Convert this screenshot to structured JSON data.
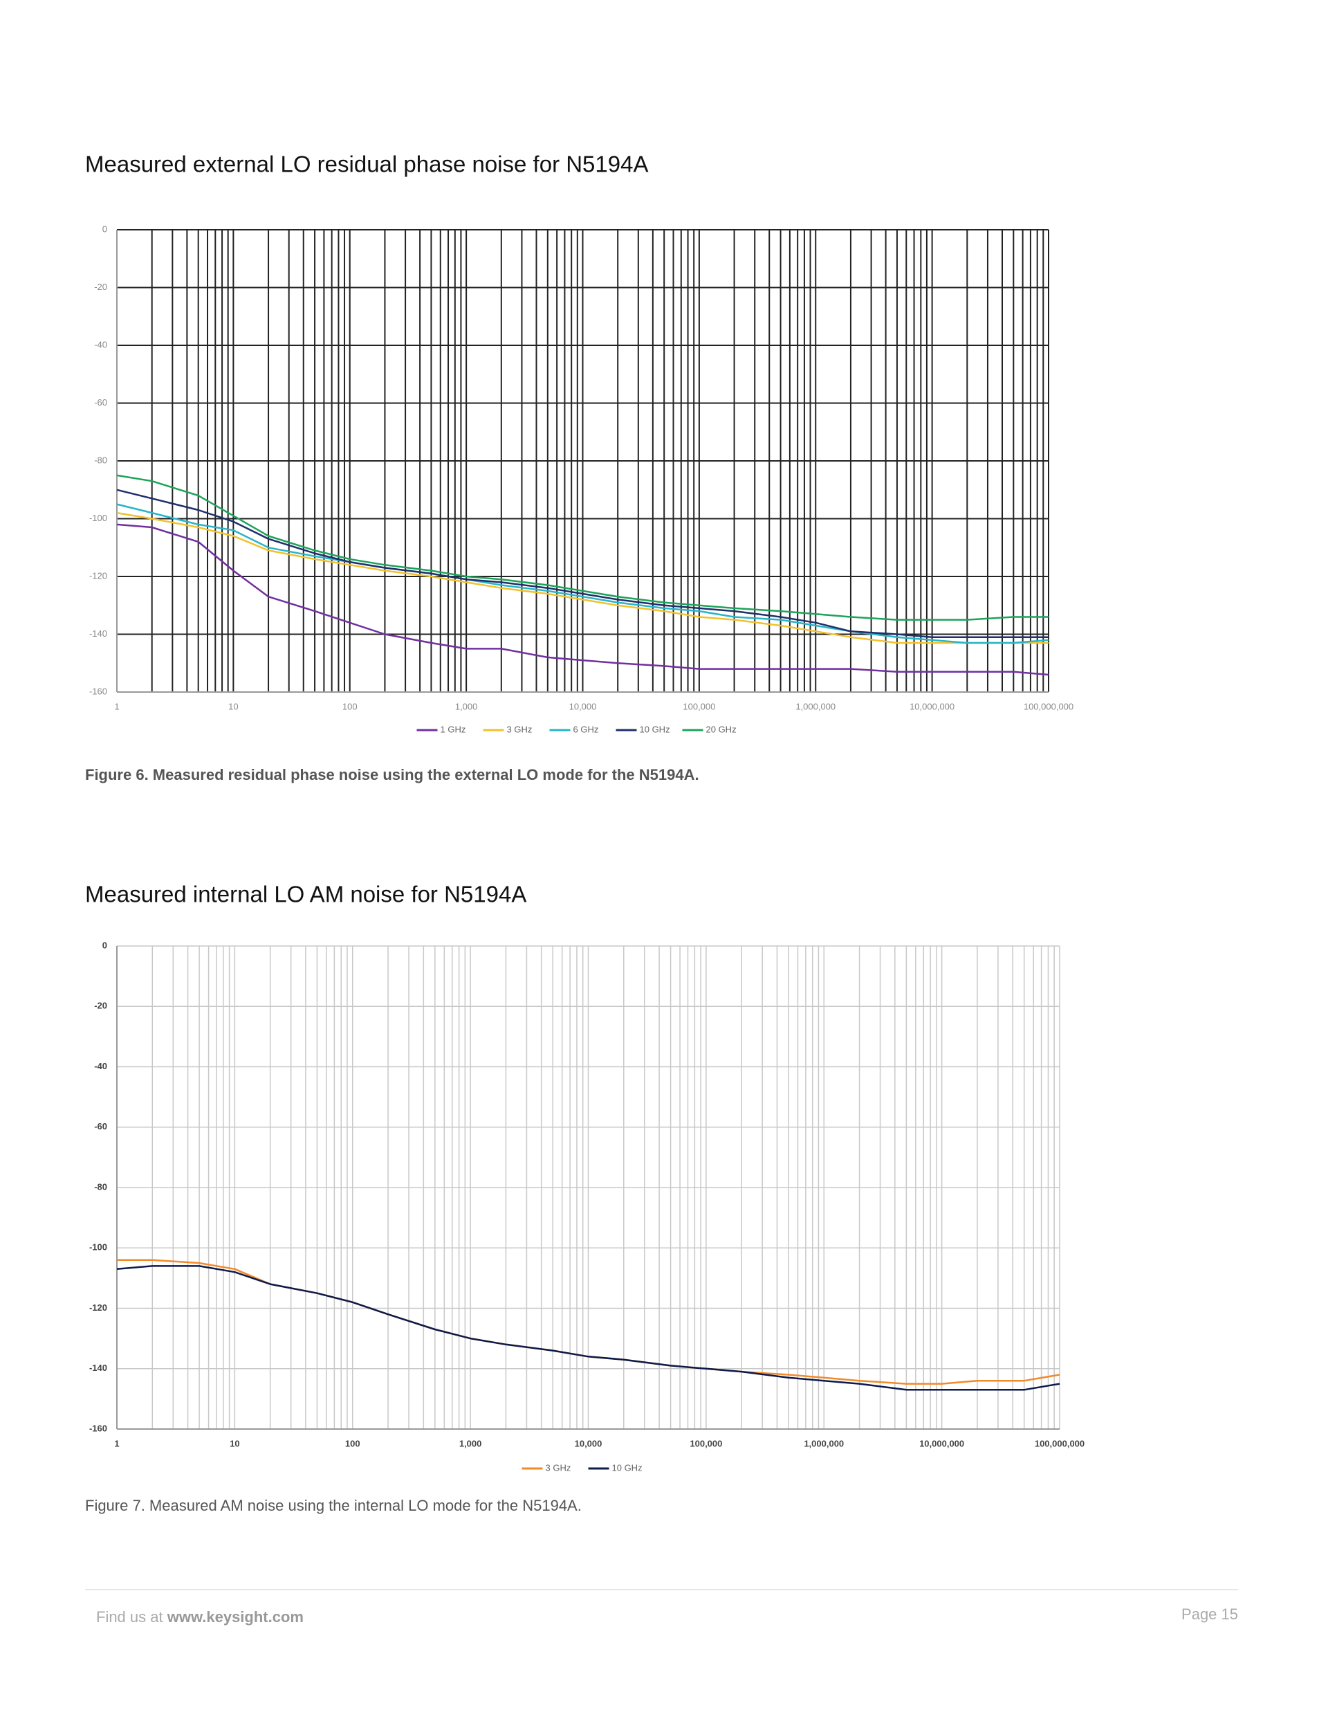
{
  "chart_data": [
    {
      "type": "line",
      "title": "Measured external LO residual phase noise for N5194A",
      "caption": "Figure 6. Measured residual phase noise using the external LO mode for the N5194A.",
      "xscale": "log",
      "grid": true,
      "minor_grid": true,
      "grid_color": "#222222",
      "legend": "bottom",
      "xlim": [
        1,
        100000000
      ],
      "ylim": [
        -160,
        0
      ],
      "xticks": [
        1,
        10,
        100,
        {
          "value": 1000,
          "label": "1,000"
        },
        {
          "value": 10000,
          "label": "10,000"
        },
        {
          "value": 100000,
          "label": "100,000"
        },
        {
          "value": 1000000,
          "label": "1,000,000"
        },
        {
          "value": 10000000,
          "label": "10,000,000"
        },
        {
          "value": 100000000,
          "label": "100,000,000"
        }
      ],
      "yticks": [
        0,
        -20,
        -40,
        -60,
        -80,
        -100,
        -120,
        -140,
        -160
      ],
      "x": [
        1,
        2,
        5,
        10,
        20,
        50,
        100,
        200,
        500,
        1000,
        2000,
        5000,
        10000,
        20000,
        50000,
        100000,
        200000,
        500000,
        1000000,
        2000000,
        5000000,
        10000000,
        20000000,
        50000000,
        100000000
      ],
      "series": [
        {
          "name": "1 GHz",
          "color": "#7030a0",
          "values": [
            -102,
            -103,
            -108,
            -118,
            -127,
            -132,
            -136,
            -140,
            -143,
            -145,
            -145,
            -148,
            -149,
            -150,
            -151,
            -152,
            -152,
            -152,
            -152,
            -152,
            -153,
            -153,
            -153,
            -153,
            -154
          ]
        },
        {
          "name": "3 GHz",
          "color": "#f2c12e",
          "values": [
            -98,
            -100,
            -103,
            -106,
            -111,
            -114,
            -116,
            -118,
            -120,
            -122,
            -124,
            -126,
            -128,
            -130,
            -132,
            -134,
            -135,
            -137,
            -139,
            -141,
            -143,
            -143,
            -143,
            -143,
            -143
          ]
        },
        {
          "name": "6 GHz",
          "color": "#27b5c8",
          "values": [
            -95,
            -98,
            -102,
            -104,
            -110,
            -113,
            -115,
            -117,
            -119,
            -121,
            -123,
            -125,
            -127,
            -129,
            -131,
            -132,
            -134,
            -135,
            -137,
            -139,
            -141,
            -142,
            -143,
            -143,
            -142
          ]
        },
        {
          "name": "10 GHz",
          "color": "#1f2f6b",
          "values": [
            -90,
            -93,
            -97,
            -101,
            -107,
            -112,
            -115,
            -117,
            -119,
            -121,
            -122,
            -124,
            -126,
            -128,
            -130,
            -131,
            -132,
            -134,
            -136,
            -139,
            -140,
            -141,
            -141,
            -141,
            -141
          ]
        },
        {
          "name": "20 GHz",
          "color": "#1ea35a",
          "values": [
            -85,
            -87,
            -92,
            -99,
            -106,
            -111,
            -114,
            -116,
            -118,
            -120,
            -121,
            -123,
            -125,
            -127,
            -129,
            -130,
            -131,
            -132,
            -133,
            -134,
            -135,
            -135,
            -135,
            -134,
            -134
          ]
        }
      ]
    },
    {
      "type": "line",
      "title": "Measured internal LO AM noise for N5194A",
      "caption": "Figure 7. Measured AM noise using the internal LO mode for the N5194A.",
      "xscale": "log",
      "grid": true,
      "minor_grid": true,
      "grid_color": "#c8c8c8",
      "legend": "bottom",
      "xlim": [
        1,
        100000000
      ],
      "ylim": [
        -160,
        0
      ],
      "xticks": [
        1,
        10,
        100,
        {
          "value": 1000,
          "label": "1,000"
        },
        {
          "value": 10000,
          "label": "10,000"
        },
        {
          "value": 100000,
          "label": "100,000"
        },
        {
          "value": 1000000,
          "label": "1,000,000"
        },
        {
          "value": 10000000,
          "label": "10,000,000"
        },
        {
          "value": 100000000,
          "label": "100,000,000"
        }
      ],
      "yticks": [
        0,
        -20,
        -40,
        -60,
        -80,
        -100,
        -120,
        -140,
        -160
      ],
      "x": [
        1,
        2,
        5,
        10,
        20,
        50,
        100,
        200,
        500,
        1000,
        2000,
        5000,
        10000,
        20000,
        50000,
        100000,
        200000,
        500000,
        1000000,
        2000000,
        5000000,
        10000000,
        20000000,
        50000000,
        100000000
      ],
      "series": [
        {
          "name": "3 GHz",
          "color": "#f28a2a",
          "values": [
            -104,
            -104,
            -105,
            -107,
            -112,
            -115,
            -118,
            -122,
            -127,
            -130,
            -132,
            -134,
            -136,
            -137,
            -139,
            -140,
            -141,
            -142,
            -143,
            -144,
            -145,
            -145,
            -144,
            -144,
            -142
          ]
        },
        {
          "name": "10 GHz",
          "color": "#0d1b4b",
          "values": [
            -107,
            -106,
            -106,
            -108,
            -112,
            -115,
            -118,
            -122,
            -127,
            -130,
            -132,
            -134,
            -136,
            -137,
            -139,
            -140,
            -141,
            -143,
            -144,
            -145,
            -147,
            -147,
            -147,
            -147,
            -145
          ]
        }
      ]
    }
  ],
  "footer": {
    "prefix": "Find us at",
    "link": "www.keysight.com",
    "page": "Page 15"
  }
}
